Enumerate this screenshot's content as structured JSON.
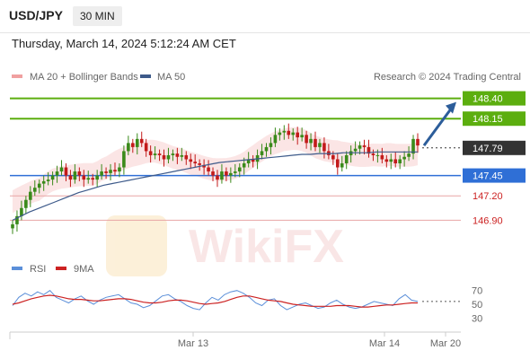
{
  "header": {
    "symbol": "USD/JPY",
    "timeframe": "30 MIN",
    "datetime": "Thursday, March 14, 2024 5:12:24 AM CET"
  },
  "legend": {
    "ma20_label": "MA 20 + Bollinger Bands",
    "ma50_label": "MA 50",
    "credit": "Research © 2024 Trading Central",
    "rsi_label": "RSI",
    "ma9_label": "9MA"
  },
  "colors": {
    "resistance": "#5cae0f",
    "support": "#2f6fd6",
    "stop": "#cc2222",
    "candle_up": "#3a8a1a",
    "candle_down": "#c21a1a",
    "ma50": "#3d5a8a",
    "arrow": "#2c5d9a",
    "rsi": "#5b8fd9",
    "rsi_ma": "#cc2222",
    "current": "#333333"
  },
  "chart_data": [
    {
      "type": "candlestick",
      "title": "USD/JPY",
      "ylim": [
        146.65,
        148.55
      ],
      "x_ticks": [
        "Mar 13",
        "Mar 14",
        "Mar 20"
      ],
      "levels": [
        {
          "value": 148.4,
          "label": "148.40",
          "kind": "resistance"
        },
        {
          "value": 148.15,
          "label": "148.15",
          "kind": "resistance"
        },
        {
          "value": 147.79,
          "label": "147.79",
          "kind": "current"
        },
        {
          "value": 147.45,
          "label": "147.45",
          "kind": "support"
        },
        {
          "value": 147.2,
          "label": "147.20",
          "kind": "stop"
        },
        {
          "value": 146.9,
          "label": "146.90",
          "kind": "stop"
        }
      ],
      "close": [
        146.85,
        146.95,
        147.05,
        147.15,
        147.25,
        147.3,
        147.35,
        147.38,
        147.4,
        147.45,
        147.5,
        147.55,
        147.45,
        147.4,
        147.5,
        147.45,
        147.4,
        147.42,
        147.4,
        147.45,
        147.5,
        147.48,
        147.52,
        147.5,
        147.55,
        147.75,
        147.85,
        147.8,
        147.9,
        147.85,
        147.75,
        147.7,
        147.72,
        147.7,
        147.65,
        147.7,
        147.72,
        147.68,
        147.7,
        147.65,
        147.62,
        147.6,
        147.58,
        147.55,
        147.5,
        147.45,
        147.4,
        147.5,
        147.45,
        147.48,
        147.5,
        147.55,
        147.6,
        147.65,
        147.62,
        147.7,
        147.75,
        147.8,
        147.85,
        147.95,
        147.98,
        148.0,
        147.95,
        147.98,
        147.92,
        147.95,
        147.85,
        147.9,
        147.8,
        147.85,
        147.75,
        147.7,
        147.65,
        147.55,
        147.6,
        147.7,
        147.75,
        147.78,
        147.82,
        147.8,
        147.72,
        147.7,
        147.7,
        147.65,
        147.62,
        147.65,
        147.6,
        147.65,
        147.68,
        147.72,
        147.9,
        147.82
      ],
      "series": [
        {
          "name": "MA 50",
          "values": [
            146.9,
            146.95,
            147.0,
            147.04,
            147.08,
            147.12,
            147.16,
            147.2,
            147.24,
            147.27,
            147.3,
            147.33,
            147.35,
            147.37,
            147.39,
            147.41,
            147.43,
            147.45,
            147.47,
            147.49,
            147.51,
            147.53,
            147.55,
            147.57,
            147.59,
            147.61,
            147.62,
            147.63,
            147.64,
            147.65,
            147.66,
            147.67,
            147.68,
            147.69,
            147.7,
            147.71,
            147.71,
            147.72,
            147.72,
            147.72,
            147.73,
            147.73,
            147.73,
            147.73,
            147.74,
            147.74,
            147.74,
            147.74,
            147.74,
            147.74
          ]
        }
      ]
    },
    {
      "type": "line",
      "title": "RSI",
      "ylim": [
        20,
        80
      ],
      "y_ticks": [
        70,
        50,
        30
      ],
      "x_ticks": [
        "Mar 13",
        "Mar 14",
        "Mar 20"
      ],
      "series": [
        {
          "name": "RSI",
          "values": [
            48,
            60,
            66,
            62,
            68,
            64,
            70,
            60,
            56,
            52,
            58,
            62,
            55,
            50,
            56,
            60,
            62,
            64,
            58,
            52,
            50,
            45,
            48,
            55,
            62,
            64,
            58,
            54,
            48,
            44,
            42,
            52,
            60,
            56,
            64,
            68,
            70,
            66,
            60,
            52,
            48,
            56,
            58,
            48,
            42,
            46,
            50,
            52,
            48,
            44,
            46,
            52,
            56,
            50,
            46,
            44,
            46,
            50,
            54,
            52,
            50,
            48,
            58,
            64,
            56,
            54
          ]
        },
        {
          "name": "9MA",
          "values": [
            50,
            52,
            55,
            58,
            60,
            62,
            63,
            62,
            60,
            58,
            57,
            57,
            56,
            55,
            55,
            56,
            57,
            58,
            58,
            57,
            55,
            53,
            52,
            52,
            53,
            55,
            56,
            56,
            55,
            53,
            51,
            50,
            51,
            52,
            54,
            57,
            60,
            62,
            62,
            60,
            58,
            56,
            55,
            54,
            52,
            50,
            49,
            48,
            47,
            47,
            47,
            47,
            48,
            48,
            48,
            47,
            46,
            46,
            47,
            48,
            49,
            49,
            50,
            51,
            52,
            52
          ]
        }
      ]
    }
  ]
}
